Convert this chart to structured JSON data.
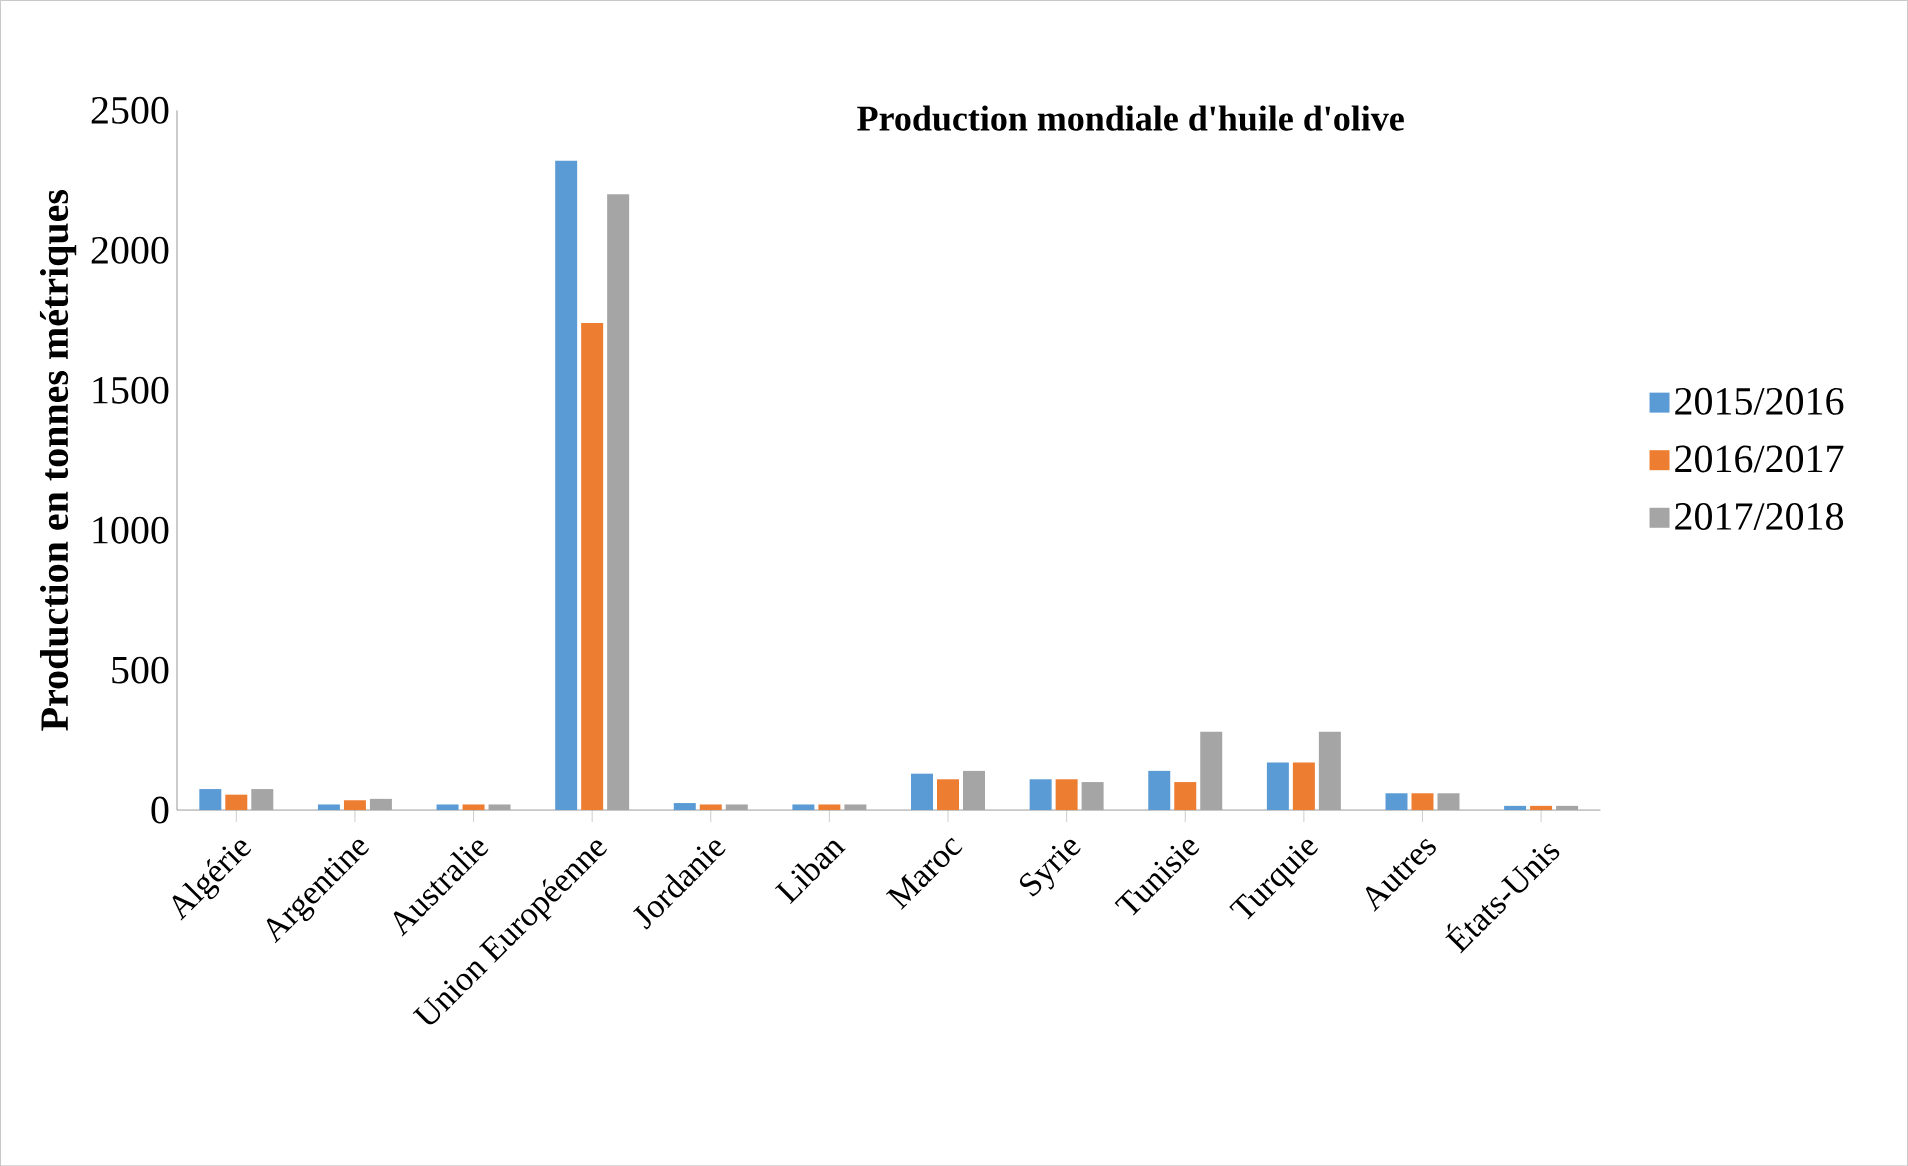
{
  "chart_data": {
    "type": "bar",
    "title": "Production mondiale d'huile d'olive",
    "ylabel": "Production en tonnes métriques",
    "categories": [
      "Algérie",
      "Argentine",
      "Australie",
      "Union Européenne",
      "Jordanie",
      "Liban",
      "Maroc",
      "Syrie",
      "Tunisie",
      "Turquie",
      "Autres",
      "États-Unis"
    ],
    "series": [
      {
        "name": "2015/2016",
        "color": "#5b9bd5",
        "values": [
          75,
          20,
          20,
          2320,
          25,
          20,
          130,
          110,
          140,
          170,
          60,
          15
        ]
      },
      {
        "name": "2016/2017",
        "color": "#ed7d31",
        "values": [
          55,
          35,
          20,
          1740,
          20,
          20,
          110,
          110,
          100,
          170,
          60,
          15
        ]
      },
      {
        "name": "2017/2018",
        "color": "#a5a5a5",
        "values": [
          75,
          40,
          20,
          2200,
          20,
          20,
          140,
          100,
          280,
          280,
          60,
          15
        ]
      }
    ],
    "ylim": [
      0,
      2500
    ],
    "yticks": [
      0,
      500,
      1000,
      1500,
      2000,
      2500
    ],
    "grid": false,
    "legend": "right"
  }
}
